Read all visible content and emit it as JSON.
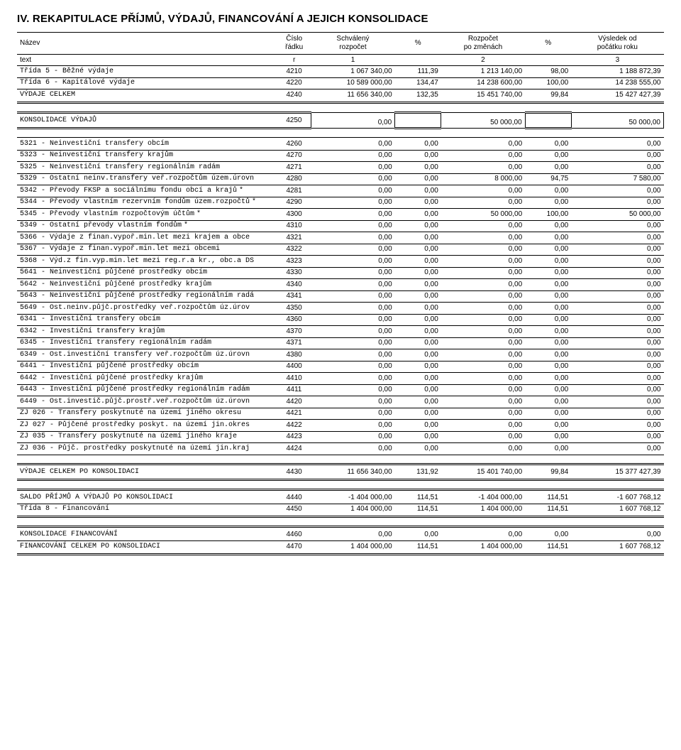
{
  "title": "IV.   REKAPITULACE PŘÍJMŮ, VÝDAJŮ, FINANCOVÁNÍ A JEJICH KONSOLIDACE",
  "header1": {
    "name": "Název",
    "r": "Číslo\nřádku",
    "v1": "Schválený\nrozpočet",
    "p1": "%",
    "v2": "Rozpočet\npo změnách",
    "p2": "%",
    "v3": "Výsledek od\npočátku roku"
  },
  "header2": {
    "name": "text",
    "r": "r",
    "v1": "1",
    "v2": "2",
    "v3": "3"
  },
  "topRows": [
    {
      "name": "Třída 5 - Běžné výdaje",
      "r": "4210",
      "v1": "1 067 340,00",
      "p1": "111,39",
      "v2": "1 213 140,00",
      "p2": "98,00",
      "v3": "1 188 872,39"
    },
    {
      "name": "Třída 6 - Kapitálové výdaje",
      "r": "4220",
      "v1": "10 589 000,00",
      "p1": "134,47",
      "v2": "14 238 600,00",
      "p2": "100,00",
      "v3": "14 238 555,00"
    },
    {
      "name": "VÝDAJE CELKEM",
      "r": "4240",
      "v1": "11 656 340,00",
      "p1": "132,35",
      "v2": "15 451 740,00",
      "p2": "99,84",
      "v3": "15 427 427,39"
    }
  ],
  "konsVydaju": {
    "name": "KONSOLIDACE VÝDAJŮ",
    "r": "4250",
    "v1": "0,00",
    "v2": "50 000,00",
    "v3": "50 000,00"
  },
  "detailRows": [
    {
      "name": "5321 - Neinvestiční transfery obcím",
      "r": "4260",
      "v1": "0,00",
      "p1": "0,00",
      "v2": "0,00",
      "p2": "0,00",
      "v3": "0,00"
    },
    {
      "name": "5323 - Neinvestiční transfery krajům",
      "r": "4270",
      "v1": "0,00",
      "p1": "0,00",
      "v2": "0,00",
      "p2": "0,00",
      "v3": "0,00"
    },
    {
      "name": "5325 - Neinvestiční transfery regionálním radám",
      "r": "4271",
      "v1": "0,00",
      "p1": "0,00",
      "v2": "0,00",
      "p2": "0,00",
      "v3": "0,00"
    },
    {
      "name": "5329 - Ostatní neinv.transfery veř.rozpočtům územ.úrovn",
      "r": "4280",
      "v1": "0,00",
      "p1": "0,00",
      "v2": "8 000,00",
      "p2": "94,75",
      "v3": "7 580,00"
    },
    {
      "name": "5342 - Převody FKSP a sociálnímu fondu obcí a krajů",
      "m": "*",
      "r": "4281",
      "v1": "0,00",
      "p1": "0,00",
      "v2": "0,00",
      "p2": "0,00",
      "v3": "0,00"
    },
    {
      "name": "5344 - Převody vlastním rezervním fondům územ.rozpočtů",
      "m": "*",
      "r": "4290",
      "v1": "0,00",
      "p1": "0,00",
      "v2": "0,00",
      "p2": "0,00",
      "v3": "0,00"
    },
    {
      "name": "5345 - Převody vlastním rozpočtovým účtům",
      "m": "*",
      "r": "4300",
      "v1": "0,00",
      "p1": "0,00",
      "v2": "50 000,00",
      "p2": "100,00",
      "v3": "50 000,00"
    },
    {
      "name": "5349 - Ostatní převody vlastním fondům",
      "m": "*",
      "r": "4310",
      "v1": "0,00",
      "p1": "0,00",
      "v2": "0,00",
      "p2": "0,00",
      "v3": "0,00"
    },
    {
      "name": "5366 - Výdaje z finan.vypoř.min.let mezi krajem a obce",
      "r": "4321",
      "v1": "0,00",
      "p1": "0,00",
      "v2": "0,00",
      "p2": "0,00",
      "v3": "0,00"
    },
    {
      "name": "5367 - Výdaje z finan.vypoř.min.let mezi obcemi",
      "r": "4322",
      "v1": "0,00",
      "p1": "0,00",
      "v2": "0,00",
      "p2": "0,00",
      "v3": "0,00"
    },
    {
      "name": "5368 - Výd.z fin.vyp.min.let mezi reg.r.a kr., obc.a DS",
      "r": "4323",
      "v1": "0,00",
      "p1": "0,00",
      "v2": "0,00",
      "p2": "0,00",
      "v3": "0,00"
    },
    {
      "name": "5641 - Neinvestiční půjčené prostředky obcím",
      "r": "4330",
      "v1": "0,00",
      "p1": "0,00",
      "v2": "0,00",
      "p2": "0,00",
      "v3": "0,00"
    },
    {
      "name": "5642 - Neinvestiční půjčené prostředky krajům",
      "r": "4340",
      "v1": "0,00",
      "p1": "0,00",
      "v2": "0,00",
      "p2": "0,00",
      "v3": "0,00"
    },
    {
      "name": "5643 - Neinvestiční půjčené prostředky regionálním radá",
      "r": "4341",
      "v1": "0,00",
      "p1": "0,00",
      "v2": "0,00",
      "p2": "0,00",
      "v3": "0,00"
    },
    {
      "name": "5649 - Ost.neinv.půjč.prostředky veř.rozpočtům úz.úrov",
      "r": "4350",
      "v1": "0,00",
      "p1": "0,00",
      "v2": "0,00",
      "p2": "0,00",
      "v3": "0,00"
    },
    {
      "name": "6341 - Investiční transfery obcím",
      "r": "4360",
      "v1": "0,00",
      "p1": "0,00",
      "v2": "0,00",
      "p2": "0,00",
      "v3": "0,00"
    },
    {
      "name": "6342 - Investiční transfery krajům",
      "r": "4370",
      "v1": "0,00",
      "p1": "0,00",
      "v2": "0,00",
      "p2": "0,00",
      "v3": "0,00"
    },
    {
      "name": "6345 - Investiční transfery regionálním radám",
      "r": "4371",
      "v1": "0,00",
      "p1": "0,00",
      "v2": "0,00",
      "p2": "0,00",
      "v3": "0,00"
    },
    {
      "name": "6349 - Ost.investiční transfery veř.rozpočtům úz.úrovn",
      "r": "4380",
      "v1": "0,00",
      "p1": "0,00",
      "v2": "0,00",
      "p2": "0,00",
      "v3": "0,00"
    },
    {
      "name": "6441 - Investiční půjčené prostředky obcím",
      "r": "4400",
      "v1": "0,00",
      "p1": "0,00",
      "v2": "0,00",
      "p2": "0,00",
      "v3": "0,00"
    },
    {
      "name": "6442 - Investiční půjčené prostředky krajům",
      "r": "4410",
      "v1": "0,00",
      "p1": "0,00",
      "v2": "0,00",
      "p2": "0,00",
      "v3": "0,00"
    },
    {
      "name": "6443 - Investiční půjčené prostředky regionálním radám",
      "r": "4411",
      "v1": "0,00",
      "p1": "0,00",
      "v2": "0,00",
      "p2": "0,00",
      "v3": "0,00"
    },
    {
      "name": "6449 - Ost.investič.půjč.prostř.veř.rozpočtům úz.úrovn",
      "r": "4420",
      "v1": "0,00",
      "p1": "0,00",
      "v2": "0,00",
      "p2": "0,00",
      "v3": "0,00"
    },
    {
      "name": "ZJ 026 - Transfery poskytnuté na území jiného okresu",
      "r": "4421",
      "v1": "0,00",
      "p1": "0,00",
      "v2": "0,00",
      "p2": "0,00",
      "v3": "0,00"
    },
    {
      "name": "ZJ 027 - Půjčené prostředky poskyt. na území jin.okres",
      "r": "4422",
      "v1": "0,00",
      "p1": "0,00",
      "v2": "0,00",
      "p2": "0,00",
      "v3": "0,00"
    },
    {
      "name": "ZJ 035 - Transfery poskytnuté na území jiného kraje",
      "r": "4423",
      "v1": "0,00",
      "p1": "0,00",
      "v2": "0,00",
      "p2": "0,00",
      "v3": "0,00"
    },
    {
      "name": "ZJ 036 - Půjč. prostředky poskytnuté na území jin.kraj",
      "r": "4424",
      "v1": "0,00",
      "p1": "0,00",
      "v2": "0,00",
      "p2": "0,00",
      "v3": "0,00"
    }
  ],
  "vydajePoKons": {
    "name": "VÝDAJE CELKEM PO KONSOLIDACI",
    "r": "4430",
    "v1": "11 656 340,00",
    "p1": "131,92",
    "v2": "15 401 740,00",
    "p2": "99,84",
    "v3": "15 377 427,39"
  },
  "saldo": {
    "name": "SALDO PŘÍJMŮ A VÝDAJŮ PO KONSOLIDACI",
    "r": "4440",
    "v1": "-1 404 000,00",
    "p1": "114,51",
    "v2": "-1 404 000,00",
    "p2": "114,51",
    "v3": "-1 607 768,12"
  },
  "trida8": {
    "name": "Třída 8 - Financování",
    "r": "4450",
    "v1": "1 404 000,00",
    "p1": "114,51",
    "v2": "1 404 000,00",
    "p2": "114,51",
    "v3": "1 607 768,12"
  },
  "konsFin": {
    "name": "KONSOLIDACE FINANCOVÁNÍ",
    "r": "4460",
    "v1": "0,00",
    "p1": "0,00",
    "v2": "0,00",
    "p2": "0,00",
    "v3": "0,00"
  },
  "finPoKons": {
    "name": "FINANCOVÁNÍ CELKEM PO KONSOLIDACI",
    "r": "4470",
    "v1": "1 404 000,00",
    "p1": "114,51",
    "v2": "1 404 000,00",
    "p2": "114,51",
    "v3": "1 607 768,12"
  }
}
